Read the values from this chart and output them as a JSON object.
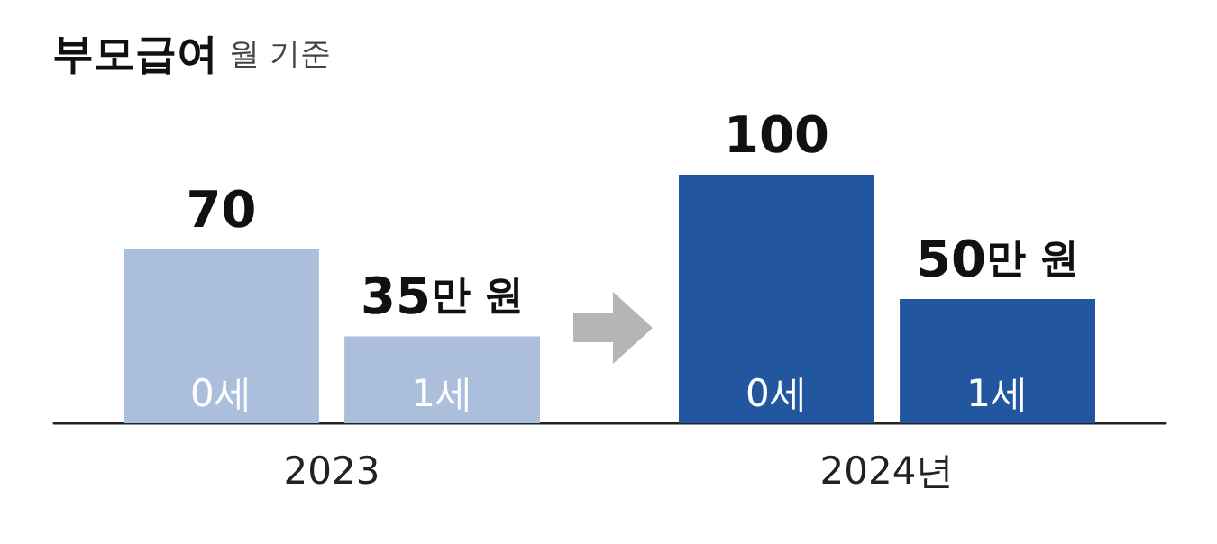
{
  "chart_data": {
    "type": "bar",
    "title": "부모급여",
    "subtitle": "월 기준",
    "categories": [
      "2023",
      "2024년"
    ],
    "series": [
      {
        "name": "0세",
        "colors": [
          "#abbedb",
          "#22569f"
        ],
        "values": [
          70,
          100
        ],
        "value_labels": [
          "70",
          "100"
        ]
      },
      {
        "name": "1세",
        "colors": [
          "#abbedb",
          "#22569f"
        ],
        "values": [
          35,
          50
        ],
        "value_labels": [
          "35만 원",
          "50만 원"
        ]
      }
    ],
    "legend": false,
    "grid": false,
    "tick_labels": "x"
  }
}
